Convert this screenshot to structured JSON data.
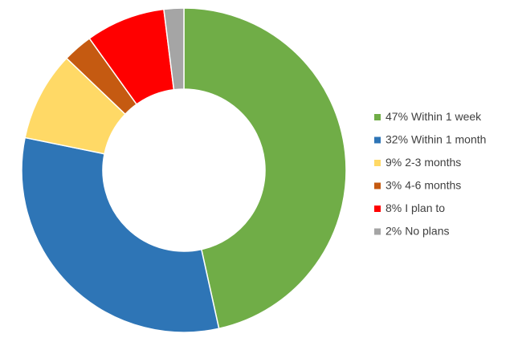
{
  "chart_data": {
    "type": "donut",
    "categories": [
      "Within 1 week",
      "Within 1 month",
      "2-3 months",
      "4-6 months",
      "I plan to",
      "No plans"
    ],
    "values": [
      47,
      32,
      9,
      3,
      8,
      2
    ],
    "value_labels": [
      "47%",
      "32%",
      "9%",
      "3%",
      "8%",
      "2%"
    ],
    "colors": [
      "#70ad47",
      "#2e75b6",
      "#ffd966",
      "#c55a11",
      "#ff0000",
      "#a5a5a5"
    ],
    "legend": "right"
  }
}
